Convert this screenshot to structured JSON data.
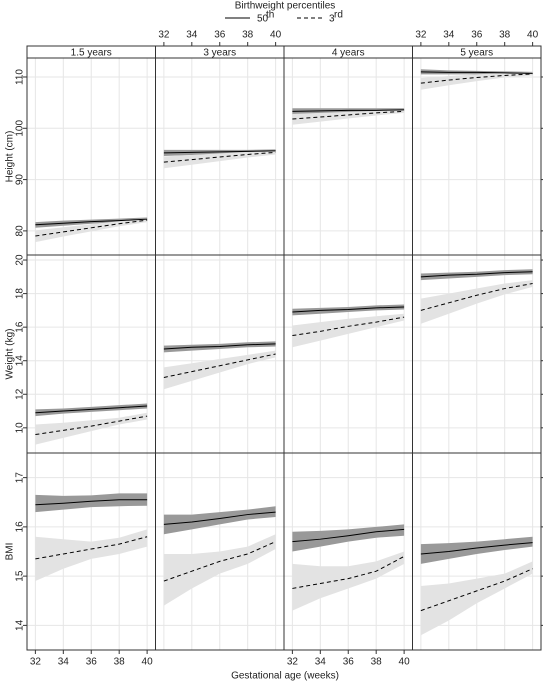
{
  "chart_data": {
    "type": "line",
    "legend_title": "Birthweight percentiles",
    "xlabel": "Gestational age (weeks)",
    "series": [
      {
        "name": "50",
        "name_sup": "th",
        "style": "solid",
        "color": "#000000",
        "band_color": "#999999"
      },
      {
        "name": "3",
        "name_sup": "rd",
        "style": "dashed",
        "color": "#000000",
        "band_color": "#e3e3e3"
      }
    ],
    "columns": [
      "1.5 years",
      "3 years",
      "4 years",
      "5 years"
    ],
    "x": [
      32,
      34,
      36,
      38,
      40
    ],
    "xlim": [
      31.4,
      40.6
    ],
    "xticks": [
      32,
      34,
      36,
      38,
      40
    ],
    "grid": true,
    "rows": [
      {
        "ylabel": "Height (cm)",
        "ylim": [
          75.3,
          113.7
        ],
        "yticks": [
          80,
          90,
          100,
          110
        ],
        "panels": [
          {
            "series": [
              {
                "values": [
                  81.2,
                  81.5,
                  81.8,
                  82.0,
                  82.3
                ],
                "lower": [
                  80.6,
                  81.0,
                  81.4,
                  81.7,
                  82.0
                ],
                "upper": [
                  81.7,
                  82.0,
                  82.2,
                  82.4,
                  82.6
                ]
              },
              {
                "values": [
                  79.0,
                  79.8,
                  80.6,
                  81.4,
                  82.1
                ],
                "lower": [
                  77.8,
                  78.9,
                  79.9,
                  80.9,
                  81.7
                ],
                "upper": [
                  80.1,
                  80.7,
                  81.3,
                  81.9,
                  82.5
                ]
              }
            ]
          },
          {
            "series": [
              {
                "values": [
                  95.2,
                  95.3,
                  95.4,
                  95.5,
                  95.6
                ],
                "lower": [
                  94.6,
                  94.8,
                  95.0,
                  95.2,
                  95.3
                ],
                "upper": [
                  95.8,
                  95.8,
                  95.8,
                  95.8,
                  95.9
                ]
              },
              {
                "values": [
                  93.4,
                  93.9,
                  94.4,
                  94.9,
                  95.3
                ],
                "lower": [
                  92.2,
                  92.9,
                  93.6,
                  94.3,
                  94.9
                ],
                "upper": [
                  94.5,
                  94.8,
                  95.1,
                  95.4,
                  95.7
                ]
              }
            ]
          },
          {
            "series": [
              {
                "values": [
                  103.3,
                  103.4,
                  103.5,
                  103.5,
                  103.6
                ],
                "lower": [
                  102.7,
                  102.9,
                  103.1,
                  103.2,
                  103.3
                ],
                "upper": [
                  103.9,
                  103.9,
                  103.9,
                  103.9,
                  103.9
                ]
              },
              {
                "values": [
                  101.8,
                  102.2,
                  102.6,
                  103.0,
                  103.3
                ],
                "lower": [
                  100.7,
                  101.3,
                  101.9,
                  102.5,
                  103.0
                ],
                "upper": [
                  102.8,
                  103.0,
                  103.2,
                  103.4,
                  103.6
                ]
              }
            ]
          },
          {
            "series": [
              {
                "values": [
                  111.0,
                  110.9,
                  110.9,
                  110.8,
                  110.7
                ],
                "lower": [
                  110.5,
                  110.5,
                  110.5,
                  110.5,
                  110.4
                ],
                "upper": [
                  111.5,
                  111.3,
                  111.2,
                  111.1,
                  111.0
                ]
              },
              {
                "values": [
                  108.8,
                  109.4,
                  109.9,
                  110.3,
                  110.6
                ],
                "lower": [
                  107.5,
                  108.4,
                  109.2,
                  109.9,
                  110.3
                ],
                "upper": [
                  109.8,
                  110.2,
                  110.5,
                  110.8,
                  110.9
                ]
              }
            ]
          }
        ]
      },
      {
        "ylabel": "Weight (kg)",
        "ylim": [
          8.5,
          20.3
        ],
        "yticks": [
          10,
          12,
          14,
          16,
          18,
          20
        ],
        "panels": [
          {
            "series": [
              {
                "values": [
                  10.9,
                  11.0,
                  11.1,
                  11.2,
                  11.3
                ],
                "lower": [
                  10.7,
                  10.85,
                  10.95,
                  11.05,
                  11.15
                ],
                "upper": [
                  11.1,
                  11.15,
                  11.25,
                  11.35,
                  11.45
                ]
              },
              {
                "values": [
                  9.6,
                  9.85,
                  10.1,
                  10.4,
                  10.7
                ],
                "lower": [
                  9.0,
                  9.4,
                  9.8,
                  10.2,
                  10.5
                ],
                "upper": [
                  10.2,
                  10.3,
                  10.45,
                  10.6,
                  10.9
                ]
              }
            ]
          },
          {
            "series": [
              {
                "values": [
                  14.7,
                  14.8,
                  14.85,
                  14.95,
                  15.0
                ],
                "lower": [
                  14.5,
                  14.6,
                  14.7,
                  14.8,
                  14.85
                ],
                "upper": [
                  14.9,
                  14.95,
                  15.0,
                  15.1,
                  15.15
                ]
              },
              {
                "values": [
                  13.0,
                  13.35,
                  13.7,
                  14.05,
                  14.4
                ],
                "lower": [
                  12.3,
                  12.8,
                  13.3,
                  13.8,
                  14.2
                ],
                "upper": [
                  13.6,
                  13.85,
                  14.1,
                  14.35,
                  14.6
                ]
              }
            ]
          },
          {
            "series": [
              {
                "values": [
                  16.9,
                  17.0,
                  17.05,
                  17.15,
                  17.2
                ],
                "lower": [
                  16.7,
                  16.8,
                  16.9,
                  17.0,
                  17.05
                ],
                "upper": [
                  17.1,
                  17.15,
                  17.2,
                  17.3,
                  17.35
                ]
              },
              {
                "values": [
                  15.5,
                  15.75,
                  16.05,
                  16.3,
                  16.6
                ],
                "lower": [
                  14.8,
                  15.2,
                  15.6,
                  16.0,
                  16.4
                ],
                "upper": [
                  16.1,
                  16.3,
                  16.5,
                  16.65,
                  16.8
                ]
              }
            ]
          },
          {
            "series": [
              {
                "values": [
                  19.0,
                  19.1,
                  19.15,
                  19.25,
                  19.3
                ],
                "lower": [
                  18.8,
                  18.9,
                  19.0,
                  19.1,
                  19.15
                ],
                "upper": [
                  19.2,
                  19.25,
                  19.3,
                  19.4,
                  19.45
                ]
              },
              {
                "values": [
                  17.0,
                  17.45,
                  17.9,
                  18.3,
                  18.6
                ],
                "lower": [
                  16.2,
                  16.8,
                  17.4,
                  17.95,
                  18.4
                ],
                "upper": [
                  17.7,
                  18.0,
                  18.3,
                  18.6,
                  18.8
                ]
              }
            ]
          }
        ]
      },
      {
        "ylabel": "BMI",
        "ylim": [
          13.5,
          17.5
        ],
        "yticks": [
          14,
          15,
          16,
          17
        ],
        "panels": [
          {
            "series": [
              {
                "values": [
                  16.45,
                  16.48,
                  16.52,
                  16.55,
                  16.55
                ],
                "lower": [
                  16.3,
                  16.35,
                  16.4,
                  16.42,
                  16.43
                ],
                "upper": [
                  16.65,
                  16.63,
                  16.64,
                  16.68,
                  16.68
                ]
              },
              {
                "values": [
                  15.35,
                  15.45,
                  15.55,
                  15.65,
                  15.8
                ],
                "lower": [
                  14.9,
                  15.15,
                  15.35,
                  15.45,
                  15.6
                ],
                "upper": [
                  15.8,
                  15.75,
                  15.7,
                  15.78,
                  15.95
                ]
              }
            ]
          },
          {
            "series": [
              {
                "values": [
                  16.05,
                  16.1,
                  16.17,
                  16.25,
                  16.3
                ],
                "lower": [
                  15.85,
                  15.95,
                  16.05,
                  16.15,
                  16.2
                ],
                "upper": [
                  16.25,
                  16.25,
                  16.3,
                  16.35,
                  16.42
                ]
              },
              {
                "values": [
                  14.9,
                  15.1,
                  15.3,
                  15.45,
                  15.7
                ],
                "lower": [
                  14.4,
                  14.75,
                  15.05,
                  15.25,
                  15.55
                ],
                "upper": [
                  15.45,
                  15.45,
                  15.5,
                  15.6,
                  15.85
                ]
              }
            ]
          },
          {
            "series": [
              {
                "values": [
                  15.7,
                  15.75,
                  15.82,
                  15.9,
                  15.95
                ],
                "lower": [
                  15.5,
                  15.6,
                  15.7,
                  15.78,
                  15.82
                ],
                "upper": [
                  15.9,
                  15.92,
                  15.95,
                  16.0,
                  16.05
                ]
              },
              {
                "values": [
                  14.75,
                  14.85,
                  14.95,
                  15.1,
                  15.4
                ],
                "lower": [
                  14.3,
                  14.55,
                  14.75,
                  14.95,
                  15.25
                ],
                "upper": [
                  15.25,
                  15.2,
                  15.2,
                  15.3,
                  15.5
                ]
              }
            ]
          },
          {
            "series": [
              {
                "values": [
                  15.45,
                  15.5,
                  15.57,
                  15.63,
                  15.68
                ],
                "lower": [
                  15.25,
                  15.35,
                  15.45,
                  15.53,
                  15.6
                ],
                "upper": [
                  15.65,
                  15.67,
                  15.7,
                  15.75,
                  15.8
                ]
              },
              {
                "values": [
                  14.3,
                  14.5,
                  14.7,
                  14.9,
                  15.15
                ],
                "lower": [
                  13.8,
                  14.1,
                  14.45,
                  14.75,
                  15.05
                ],
                "upper": [
                  14.8,
                  14.85,
                  14.95,
                  15.05,
                  15.3
                ]
              }
            ]
          }
        ]
      }
    ]
  }
}
